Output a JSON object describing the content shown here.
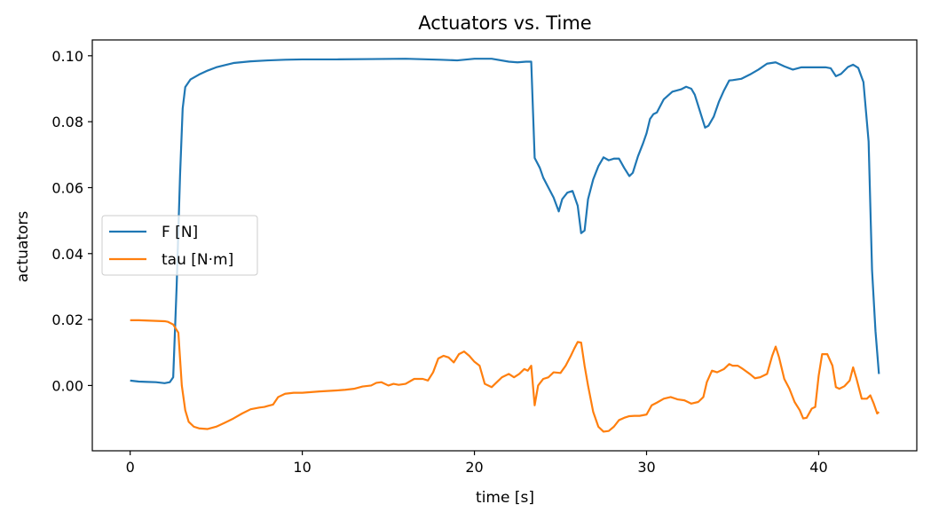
{
  "chart_data": {
    "type": "line",
    "title": "Actuators vs. Time",
    "xlabel": "time [s]",
    "ylabel": "actuators",
    "xlim": [
      -2.2,
      45.7
    ],
    "ylim": [
      -0.0198,
      0.1048
    ],
    "x_ticks": [
      0,
      10,
      20,
      30,
      40
    ],
    "x_tick_labels": [
      "0",
      "10",
      "20",
      "30",
      "40"
    ],
    "y_ticks": [
      0.0,
      0.02,
      0.04,
      0.06,
      0.08,
      0.1
    ],
    "y_tick_labels": [
      "0.00",
      "0.02",
      "0.04",
      "0.06",
      "0.08",
      "0.10"
    ],
    "grid": false,
    "legend_position": "center-left",
    "series": [
      {
        "name": "F [N]",
        "color": "#1f77b4",
        "x": [
          0,
          0.5,
          1,
          1.5,
          2,
          2.3,
          2.5,
          2.7,
          2.9,
          3.05,
          3.2,
          3.5,
          4,
          4.5,
          5,
          6,
          7,
          8,
          9,
          10,
          12,
          14,
          16,
          18,
          19,
          20,
          21,
          22,
          22.5,
          23,
          23.3,
          23.5,
          23.8,
          24,
          24.3,
          24.6,
          24.9,
          25.1,
          25.4,
          25.7,
          26,
          26.2,
          26.4,
          26.6,
          26.9,
          27.2,
          27.5,
          27.8,
          28.1,
          28.4,
          28.7,
          29,
          29.2,
          29.5,
          29.8,
          30,
          30.2,
          30.4,
          30.6,
          31,
          31.5,
          32,
          32.3,
          32.6,
          32.8,
          33.1,
          33.4,
          33.6,
          33.9,
          34.2,
          34.5,
          34.8,
          35,
          35.5,
          36,
          36.5,
          37,
          37.5,
          38,
          38.5,
          39,
          39.5,
          40,
          40.4,
          40.7,
          41,
          41.3,
          41.7,
          42,
          42.3,
          42.6,
          42.9,
          43.1,
          43.3,
          43.5
        ],
        "y": [
          0.0015,
          0.0012,
          0.0011,
          0.001,
          0.0007,
          0.001,
          0.0025,
          0.03,
          0.064,
          0.084,
          0.0905,
          0.0928,
          0.0943,
          0.0955,
          0.0965,
          0.0978,
          0.0983,
          0.0986,
          0.0988,
          0.0989,
          0.0989,
          0.099,
          0.0991,
          0.0988,
          0.0986,
          0.0991,
          0.0991,
          0.0982,
          0.098,
          0.0982,
          0.0982,
          0.069,
          0.066,
          0.063,
          0.06,
          0.057,
          0.0528,
          0.0565,
          0.0585,
          0.059,
          0.0545,
          0.0462,
          0.047,
          0.0565,
          0.0625,
          0.0665,
          0.0692,
          0.0683,
          0.0688,
          0.0688,
          0.066,
          0.0635,
          0.0645,
          0.0695,
          0.0735,
          0.0765,
          0.0808,
          0.0823,
          0.0828,
          0.0868,
          0.0891,
          0.0898,
          0.0906,
          0.09,
          0.0882,
          0.0832,
          0.0782,
          0.0788,
          0.0815,
          0.086,
          0.0895,
          0.0925,
          0.0926,
          0.093,
          0.0943,
          0.0958,
          0.0976,
          0.098,
          0.0968,
          0.0958,
          0.0965,
          0.0965,
          0.0965,
          0.0965,
          0.0962,
          0.0938,
          0.0945,
          0.0966,
          0.0973,
          0.0963,
          0.092,
          0.074,
          0.035,
          0.0165,
          0.0035
        ]
      },
      {
        "name": "tau [N·m]",
        "color": "#ff7f0e",
        "x": [
          0,
          0.5,
          1,
          1.5,
          2,
          2.2,
          2.5,
          2.8,
          3.0,
          3.2,
          3.4,
          3.7,
          4,
          4.5,
          5,
          5.5,
          6,
          6.5,
          7,
          7.5,
          7.8,
          8,
          8.3,
          8.6,
          9,
          9.5,
          10,
          11,
          12,
          12.5,
          13,
          13.5,
          14,
          14.3,
          14.6,
          15,
          15.3,
          15.6,
          16,
          16.5,
          17,
          17.3,
          17.6,
          17.9,
          18.2,
          18.5,
          18.8,
          19.1,
          19.4,
          19.7,
          20,
          20.3,
          20.6,
          21,
          21.3,
          21.6,
          22,
          22.3,
          22.6,
          22.9,
          23.1,
          23.3,
          23.5,
          23.7,
          24,
          24.3,
          24.6,
          25,
          25.3,
          25.6,
          25.8,
          26,
          26.2,
          26.4,
          26.6,
          26.9,
          27.2,
          27.5,
          27.8,
          28.1,
          28.4,
          28.7,
          29,
          29.3,
          29.6,
          30,
          30.3,
          30.6,
          31,
          31.4,
          31.8,
          32.2,
          32.6,
          33,
          33.3,
          33.5,
          33.8,
          34.1,
          34.5,
          34.8,
          35,
          35.3,
          35.6,
          36,
          36.3,
          36.6,
          37,
          37.3,
          37.5,
          37.7,
          38,
          38.3,
          38.6,
          38.9,
          39.1,
          39.3,
          39.6,
          39.8,
          40,
          40.2,
          40.5,
          40.8,
          41,
          41.2,
          41.5,
          41.8,
          42,
          42.2,
          42.5,
          42.8,
          43,
          43.2,
          43.4,
          43.5
        ],
        "y": [
          0.0198,
          0.0198,
          0.0197,
          0.0196,
          0.0195,
          0.0193,
          0.0185,
          0.016,
          0.0,
          -0.0075,
          -0.011,
          -0.0125,
          -0.013,
          -0.0132,
          -0.0125,
          -0.0113,
          -0.01,
          -0.0085,
          -0.0072,
          -0.0067,
          -0.0065,
          -0.0062,
          -0.0058,
          -0.0035,
          -0.0025,
          -0.0022,
          -0.0022,
          -0.0018,
          -0.0015,
          -0.0013,
          -0.001,
          -0.0003,
          0.0,
          0.0008,
          0.001,
          0.0,
          0.0005,
          0.0002,
          0.0005,
          0.002,
          0.002,
          0.0015,
          0.004,
          0.0082,
          0.009,
          0.0085,
          0.007,
          0.0095,
          0.0103,
          0.009,
          0.0072,
          0.006,
          0.0005,
          -0.0005,
          0.001,
          0.0025,
          0.0035,
          0.0025,
          0.0035,
          0.005,
          0.0045,
          0.006,
          -0.006,
          0.0,
          0.002,
          0.0025,
          0.004,
          0.0038,
          0.006,
          0.009,
          0.0112,
          0.0132,
          0.013,
          0.006,
          0.0,
          -0.008,
          -0.0125,
          -0.014,
          -0.0138,
          -0.0125,
          -0.0105,
          -0.0098,
          -0.0093,
          -0.0092,
          -0.0092,
          -0.0088,
          -0.006,
          -0.0052,
          -0.004,
          -0.0035,
          -0.0042,
          -0.0045,
          -0.0055,
          -0.005,
          -0.0035,
          0.001,
          0.0045,
          0.004,
          0.005,
          0.0065,
          0.006,
          0.006,
          0.005,
          0.0035,
          0.0022,
          0.0025,
          0.0035,
          0.009,
          0.0118,
          0.0085,
          0.002,
          -0.001,
          -0.005,
          -0.0075,
          -0.01,
          -0.0098,
          -0.007,
          -0.0065,
          0.003,
          0.0095,
          0.0095,
          0.006,
          -0.0005,
          -0.001,
          -0.0002,
          0.0015,
          0.0055,
          0.002,
          -0.004,
          -0.004,
          -0.003,
          -0.0055,
          -0.0085,
          -0.008
        ]
      }
    ]
  }
}
